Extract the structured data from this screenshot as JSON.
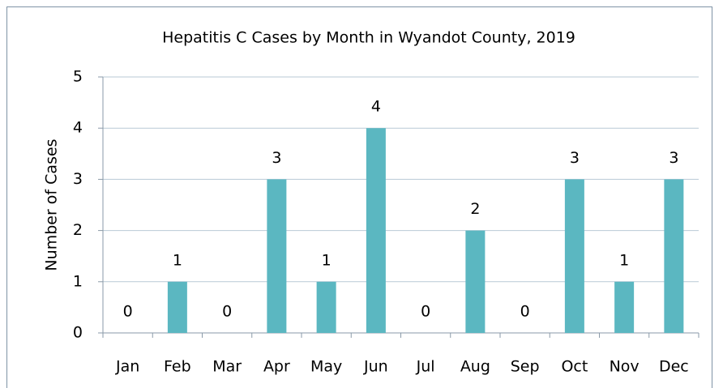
{
  "chart_data": {
    "type": "bar",
    "title": "Hepatitis C Cases by Month in Wyandot County, 2019",
    "y_label": "Number of Cases",
    "categories": [
      "Jan",
      "Feb",
      "Mar",
      "Apr",
      "May",
      "Jun",
      "Jul",
      "Aug",
      "Sep",
      "Oct",
      "Nov",
      "Dec"
    ],
    "values": [
      0,
      1,
      0,
      3,
      1,
      4,
      0,
      2,
      0,
      3,
      1,
      3
    ],
    "color": "#5bb7c1",
    "ylim": [
      0,
      5
    ],
    "yticks": [
      0,
      1,
      2,
      3,
      4,
      5
    ],
    "grid": true
  }
}
